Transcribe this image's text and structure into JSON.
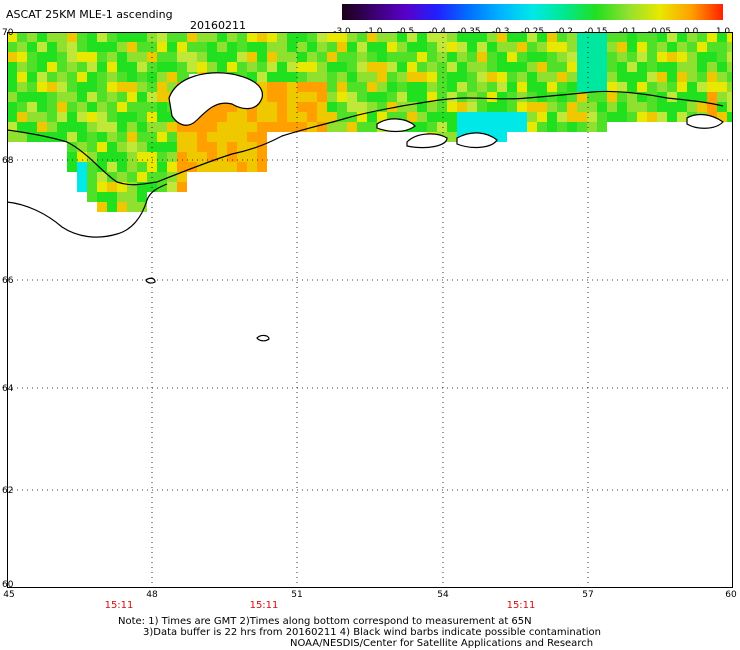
{
  "header": {
    "title": "ASCAT 25KM MLE-1 ascending",
    "date": "20160211"
  },
  "colorbar": {
    "labels": [
      "-3.0",
      "-1.0",
      "-0.5",
      "-0.4",
      "-0.35",
      "-0.3",
      "-0.25",
      "-0.2",
      "-0.15",
      "-0.1",
      "-0.05",
      "0.0",
      "1.0"
    ],
    "colors": [
      "#1a0018",
      "#3a0070",
      "#5a00c8",
      "#2020ff",
      "#0070ff",
      "#00b4ff",
      "#00e8e8",
      "#00e890",
      "#20e020",
      "#90e030",
      "#e8e800",
      "#ffa000",
      "#ff2000"
    ]
  },
  "axes": {
    "lat_labels": [
      "70",
      "68",
      "66",
      "64",
      "62",
      "60"
    ],
    "lon_labels": [
      "45",
      "48",
      "51",
      "54",
      "57",
      "60"
    ],
    "time_labels": [
      "15:11",
      "15:11",
      "15:11"
    ]
  },
  "footer": {
    "note_line1": "Note: 1) Times are GMT 2)Times along bottom correspond to measurement at 65N",
    "note_line2": "3)Data buffer is 22 hrs from 20160211 4) Black wind barbs indicate possible contamination",
    "credit": "NOAA/NESDIS/Center for Satellite Applications and Research"
  }
}
